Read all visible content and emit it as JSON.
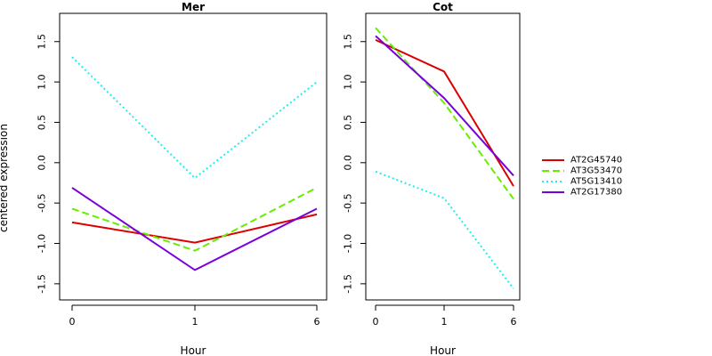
{
  "chart_data": {
    "type": "line",
    "ylabel": "centered expression",
    "xlabel": "Hour",
    "x_categories": [
      "0",
      "1",
      "6"
    ],
    "y_ticks": [
      -1.5,
      -1.0,
      -0.5,
      0.0,
      0.5,
      1.0,
      1.5
    ],
    "y_tick_labels": [
      "-1.5",
      "-1.0",
      "-0.5",
      "0.0",
      "0.5",
      "1.0",
      "1.5"
    ],
    "ylim": [
      -1.7,
      1.85
    ],
    "legend_placement": "right",
    "series": [
      {
        "name": "AT2G45740",
        "color": "#dd0000",
        "dash": "solid"
      },
      {
        "name": "AT3G53470",
        "color": "#66ee00",
        "dash": "dashed"
      },
      {
        "name": "AT5G13410",
        "color": "#22eeee",
        "dash": "dotted"
      },
      {
        "name": "AT2G17380",
        "color": "#7700dd",
        "dash": "solid"
      }
    ],
    "panels": [
      {
        "title": "Mer",
        "values": {
          "AT2G45740": [
            -0.74,
            -0.99,
            -0.64
          ],
          "AT3G53470": [
            -0.57,
            -1.09,
            -0.31
          ],
          "AT5G13410": [
            1.31,
            -0.19,
            1.0
          ],
          "AT2G17380": [
            -0.31,
            -1.33,
            -0.57
          ]
        }
      },
      {
        "title": "Cot",
        "values": {
          "AT2G45740": [
            1.52,
            1.13,
            -0.29
          ],
          "AT3G53470": [
            1.67,
            0.74,
            -0.45
          ],
          "AT5G13410": [
            -0.11,
            -0.44,
            -1.56
          ],
          "AT2G17380": [
            1.57,
            0.8,
            -0.16
          ]
        }
      }
    ]
  }
}
